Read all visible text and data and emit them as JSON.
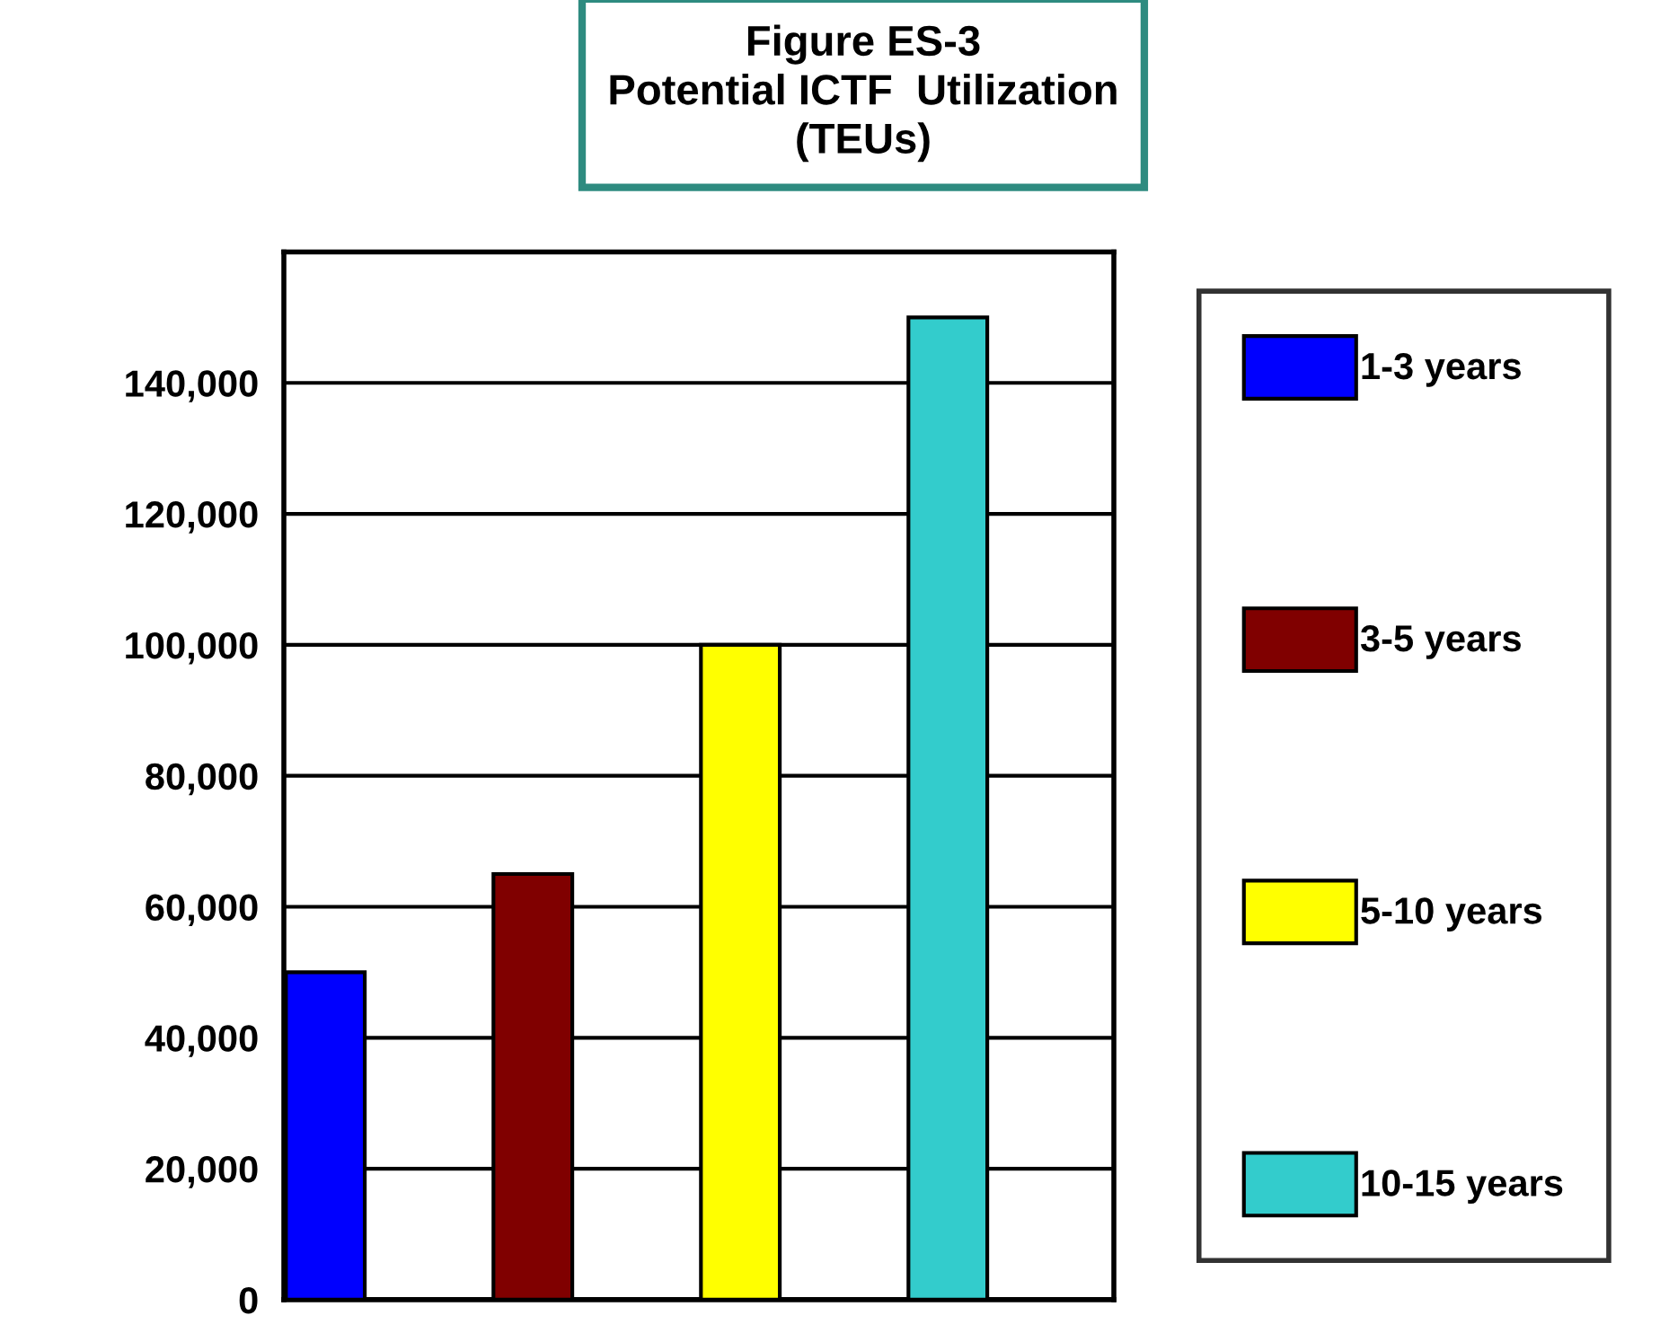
{
  "chart_data": {
    "type": "bar",
    "title": "Figure ES-3\nPotential ICTF  Utilization\n(TEUs)",
    "categories": [
      null,
      null,
      null,
      null
    ],
    "series": [
      {
        "name": "1-3 years",
        "color": "#0000ff",
        "values": [
          50000,
          null,
          null,
          null
        ]
      },
      {
        "name": "3-5 years",
        "color": "#800000",
        "values": [
          null,
          65000,
          null,
          null
        ]
      },
      {
        "name": "5-10 years",
        "color": "#ffff00",
        "values": [
          null,
          null,
          100000,
          null
        ]
      },
      {
        "name": "10-15 years",
        "color": "#33cccc",
        "values": [
          null,
          null,
          null,
          150000
        ]
      }
    ],
    "ylim": [
      0,
      160000
    ],
    "yticks": [
      {
        "value": 0,
        "label": "0"
      },
      {
        "value": 20000,
        "label": "20,000"
      },
      {
        "value": 40000,
        "label": "40,000"
      },
      {
        "value": 60000,
        "label": "60,000"
      },
      {
        "value": 80000,
        "label": "80,000"
      },
      {
        "value": 100000,
        "label": "100,000"
      },
      {
        "value": 120000,
        "label": "120,000"
      },
      {
        "value": 140000,
        "label": "140,000"
      }
    ],
    "grid": "y",
    "legend": "right",
    "tick_labels": "y"
  }
}
